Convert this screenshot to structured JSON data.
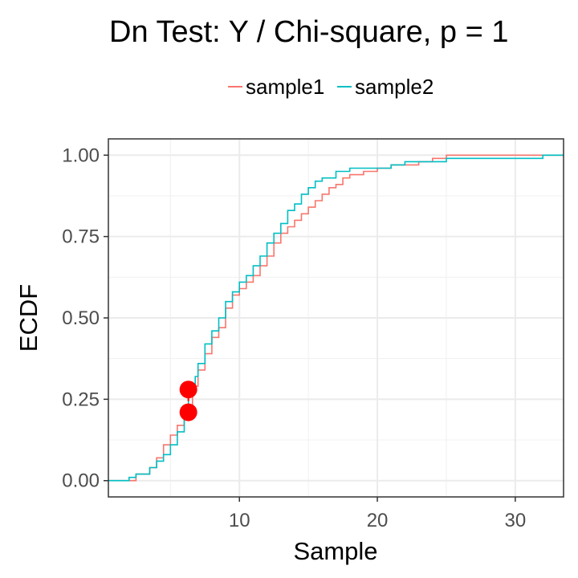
{
  "chart_data": {
    "type": "line",
    "step": true,
    "title": "Dn Test: Y / Chi-square, p = 1",
    "xlabel": "Sample",
    "ylabel": "ECDF",
    "xlim": [
      0.5,
      33.5
    ],
    "ylim": [
      -0.05,
      1.05
    ],
    "xticks": [
      10,
      20,
      30
    ],
    "yticks": [
      0.0,
      0.25,
      0.5,
      0.75,
      1.0
    ],
    "xtick_labels": [
      "10",
      "20",
      "30"
    ],
    "ytick_labels": [
      "0.00",
      "0.25",
      "0.50",
      "0.75",
      "1.00"
    ],
    "grid": true,
    "legend_position": "top",
    "series": [
      {
        "name": "sample1",
        "color": "#F8766D",
        "points": [
          [
            0.5,
            0.0
          ],
          [
            2.2,
            0.0
          ],
          [
            2.5,
            0.02
          ],
          [
            3.0,
            0.02
          ],
          [
            3.5,
            0.04
          ],
          [
            4.0,
            0.07
          ],
          [
            4.5,
            0.11
          ],
          [
            5.0,
            0.14
          ],
          [
            5.5,
            0.17
          ],
          [
            6.0,
            0.2
          ],
          [
            6.3,
            0.21
          ],
          [
            6.6,
            0.29
          ],
          [
            7.0,
            0.34
          ],
          [
            7.5,
            0.39
          ],
          [
            8.0,
            0.44
          ],
          [
            8.5,
            0.47
          ],
          [
            9.0,
            0.53
          ],
          [
            9.5,
            0.57
          ],
          [
            10.0,
            0.59
          ],
          [
            10.5,
            0.61
          ],
          [
            11.0,
            0.63
          ],
          [
            11.5,
            0.66
          ],
          [
            12.0,
            0.69
          ],
          [
            12.5,
            0.73
          ],
          [
            13.0,
            0.76
          ],
          [
            13.5,
            0.78
          ],
          [
            14.0,
            0.8
          ],
          [
            14.5,
            0.82
          ],
          [
            15.0,
            0.84
          ],
          [
            15.5,
            0.86
          ],
          [
            16.0,
            0.88
          ],
          [
            16.5,
            0.9
          ],
          [
            17.0,
            0.91
          ],
          [
            17.5,
            0.93
          ],
          [
            18.0,
            0.94
          ],
          [
            19.0,
            0.95
          ],
          [
            20.0,
            0.96
          ],
          [
            21.0,
            0.97
          ],
          [
            22.0,
            0.97
          ],
          [
            23.0,
            0.98
          ],
          [
            24.0,
            0.99
          ],
          [
            25.0,
            1.0
          ],
          [
            33.5,
            1.0
          ]
        ]
      },
      {
        "name": "sample2",
        "color": "#00BFC4",
        "points": [
          [
            0.5,
            0.0
          ],
          [
            1.5,
            0.0
          ],
          [
            2.0,
            0.01
          ],
          [
            2.5,
            0.02
          ],
          [
            3.5,
            0.04
          ],
          [
            4.0,
            0.06
          ],
          [
            4.5,
            0.08
          ],
          [
            5.0,
            0.11
          ],
          [
            5.5,
            0.15
          ],
          [
            6.0,
            0.2
          ],
          [
            6.3,
            0.28
          ],
          [
            6.8,
            0.32
          ],
          [
            7.0,
            0.36
          ],
          [
            7.5,
            0.42
          ],
          [
            8.0,
            0.46
          ],
          [
            8.5,
            0.5
          ],
          [
            9.0,
            0.55
          ],
          [
            9.5,
            0.58
          ],
          [
            10.0,
            0.61
          ],
          [
            10.5,
            0.63
          ],
          [
            11.0,
            0.66
          ],
          [
            11.5,
            0.69
          ],
          [
            12.0,
            0.73
          ],
          [
            12.5,
            0.76
          ],
          [
            13.0,
            0.79
          ],
          [
            13.5,
            0.83
          ],
          [
            14.0,
            0.85
          ],
          [
            14.5,
            0.88
          ],
          [
            15.0,
            0.9
          ],
          [
            15.5,
            0.92
          ],
          [
            16.0,
            0.93
          ],
          [
            17.0,
            0.95
          ],
          [
            18.0,
            0.96
          ],
          [
            20.0,
            0.96
          ],
          [
            21.0,
            0.97
          ],
          [
            22.0,
            0.98
          ],
          [
            23.0,
            0.98
          ],
          [
            25.0,
            0.99
          ],
          [
            32.0,
            1.0
          ],
          [
            33.5,
            1.0
          ]
        ]
      }
    ],
    "highlight_points": {
      "color": "#FF0000",
      "points": [
        [
          6.3,
          0.21
        ],
        [
          6.3,
          0.28
        ]
      ]
    }
  }
}
